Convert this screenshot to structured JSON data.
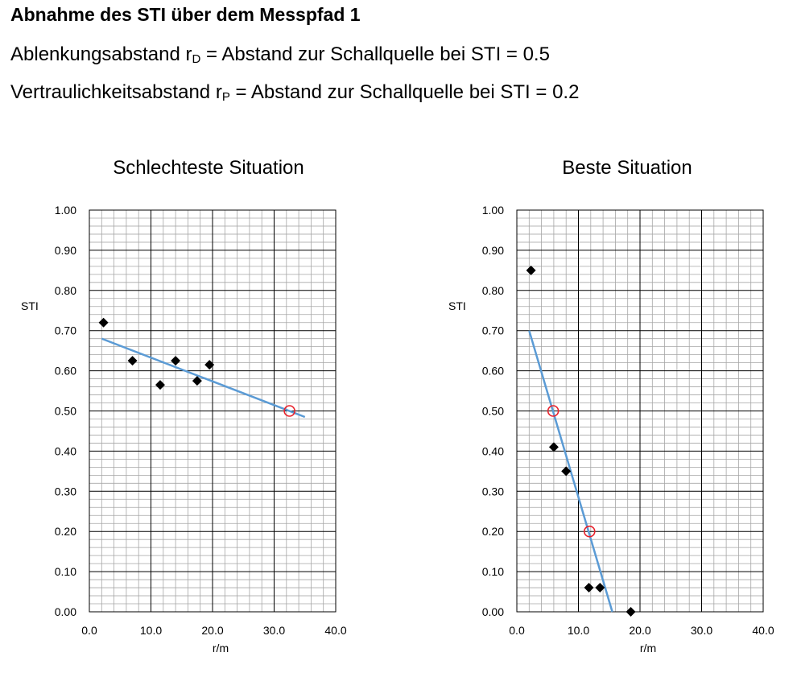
{
  "heading": "Abnahme des STI über dem Messpfad 1",
  "definitions": [
    {
      "name": "Ablenkungsabstand r",
      "sub": "D",
      "rest": " = Abstand zur Schallquelle bei STI = 0.5"
    },
    {
      "name": "Vertraulichkeitsabstand r",
      "sub": "P",
      "rest": " = Abstand zur Schallquelle bei STI = 0.2"
    }
  ],
  "colors": {
    "points": "#000000",
    "trend": "#5b9bd5",
    "marker": "#e8212b",
    "grid_minor": "#a6a6a6",
    "grid_major": "#000000"
  },
  "chart_data": [
    {
      "type": "scatter",
      "title": "Schlechteste Situation",
      "xlabel": "r/m",
      "ylabel": "STI",
      "xlim": [
        0,
        40
      ],
      "ylim": [
        0,
        1
      ],
      "x_ticks": [
        "0.0",
        "10.0",
        "20.0",
        "30.0",
        "40.0"
      ],
      "y_ticks": [
        "0.00",
        "0.10",
        "0.20",
        "0.30",
        "0.40",
        "0.50",
        "0.60",
        "0.70",
        "0.80",
        "0.90",
        "1.00"
      ],
      "grid": true,
      "points": [
        {
          "x": 2.3,
          "y": 0.72
        },
        {
          "x": 7.0,
          "y": 0.625
        },
        {
          "x": 11.5,
          "y": 0.565
        },
        {
          "x": 14.0,
          "y": 0.625
        },
        {
          "x": 17.5,
          "y": 0.575
        },
        {
          "x": 19.5,
          "y": 0.615
        }
      ],
      "trendline": [
        {
          "x": 2.0,
          "y": 0.68
        },
        {
          "x": 35.0,
          "y": 0.485
        }
      ],
      "markers": [
        {
          "x": 32.5,
          "y": 0.5
        }
      ]
    },
    {
      "type": "scatter",
      "title": "Beste Situation",
      "xlabel": "r/m",
      "ylabel": "STI",
      "xlim": [
        0,
        40
      ],
      "ylim": [
        0,
        1
      ],
      "x_ticks": [
        "0.0",
        "10.0",
        "20.0",
        "30.0",
        "40.0"
      ],
      "y_ticks": [
        "0.00",
        "0.10",
        "0.20",
        "0.30",
        "0.40",
        "0.50",
        "0.60",
        "0.70",
        "0.80",
        "0.90",
        "1.00"
      ],
      "grid": true,
      "points": [
        {
          "x": 2.3,
          "y": 0.85
        },
        {
          "x": 6.0,
          "y": 0.41
        },
        {
          "x": 8.0,
          "y": 0.35
        },
        {
          "x": 11.7,
          "y": 0.06
        },
        {
          "x": 13.5,
          "y": 0.06
        },
        {
          "x": 18.5,
          "y": 0.0
        }
      ],
      "trendline": [
        {
          "x": 2.0,
          "y": 0.7
        },
        {
          "x": 15.5,
          "y": 0.0
        }
      ],
      "markers": [
        {
          "x": 5.9,
          "y": 0.5
        },
        {
          "x": 11.8,
          "y": 0.2
        }
      ]
    }
  ]
}
